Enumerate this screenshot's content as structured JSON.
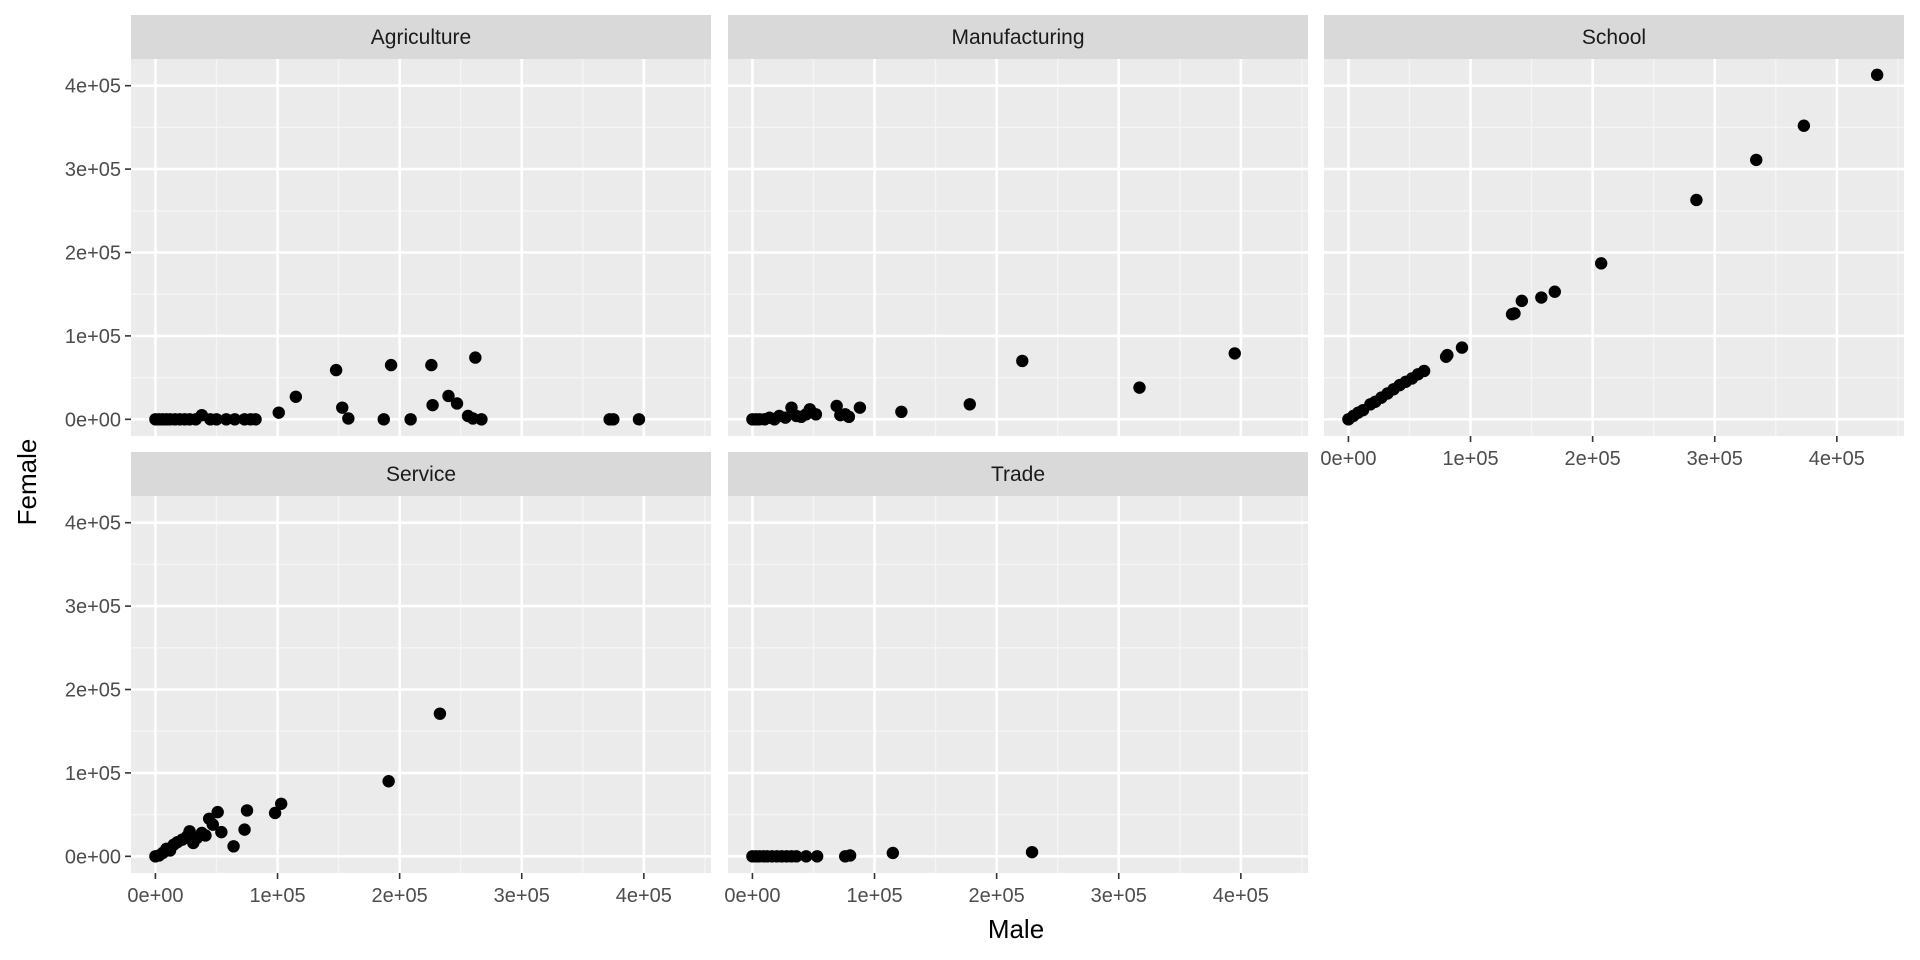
{
  "chart_data": {
    "type": "scatter",
    "xlabel": "Male",
    "ylabel": "Female",
    "xlim": [
      -20000,
      455000
    ],
    "ylim": [
      -20000,
      432000
    ],
    "x_ticks": [
      0,
      100000,
      200000,
      300000,
      400000
    ],
    "x_tick_labels": [
      "0e+00",
      "1e+05",
      "2e+05",
      "3e+05",
      "4e+05"
    ],
    "y_ticks": [
      0,
      100000,
      200000,
      300000,
      400000
    ],
    "y_tick_labels": [
      "0e+00",
      "1e+05",
      "2e+05",
      "3e+05",
      "4e+05"
    ],
    "grid": true,
    "colors": {
      "panel_background": "#ebebeb",
      "strip_background": "#d9d9d9",
      "grid_major": "#ffffff",
      "point": "#000000"
    },
    "panels": [
      {
        "name": "Agriculture",
        "points": [
          [
            0,
            0
          ],
          [
            3000,
            0
          ],
          [
            6000,
            0
          ],
          [
            9000,
            0
          ],
          [
            12000,
            0
          ],
          [
            16000,
            0
          ],
          [
            20000,
            0
          ],
          [
            24000,
            0
          ],
          [
            28000,
            0
          ],
          [
            33000,
            0
          ],
          [
            38000,
            5000
          ],
          [
            45000,
            0
          ],
          [
            50000,
            0
          ],
          [
            58000,
            0
          ],
          [
            65000,
            0
          ],
          [
            73000,
            0
          ],
          [
            78000,
            0
          ],
          [
            82000,
            0
          ],
          [
            101000,
            8000
          ],
          [
            115000,
            27000
          ],
          [
            148000,
            59000
          ],
          [
            153000,
            14000
          ],
          [
            158000,
            1000
          ],
          [
            187000,
            0
          ],
          [
            193000,
            65000
          ],
          [
            209000,
            0
          ],
          [
            226000,
            65000
          ],
          [
            227000,
            17000
          ],
          [
            240000,
            28000
          ],
          [
            247000,
            19000
          ],
          [
            256000,
            4000
          ],
          [
            262000,
            74000
          ],
          [
            260000,
            1000
          ],
          [
            267000,
            0
          ],
          [
            372000,
            0
          ],
          [
            375000,
            0
          ],
          [
            396000,
            0
          ]
        ]
      },
      {
        "name": "Manufacturing",
        "points": [
          [
            0,
            0
          ],
          [
            3000,
            0
          ],
          [
            6000,
            0
          ],
          [
            10000,
            0
          ],
          [
            14000,
            2000
          ],
          [
            18000,
            0
          ],
          [
            22000,
            4000
          ],
          [
            27000,
            2000
          ],
          [
            32000,
            14000
          ],
          [
            36000,
            4000
          ],
          [
            40000,
            3000
          ],
          [
            44000,
            6000
          ],
          [
            47000,
            12000
          ],
          [
            52000,
            6000
          ],
          [
            69000,
            16000
          ],
          [
            72000,
            5000
          ],
          [
            76000,
            6000
          ],
          [
            79000,
            3000
          ],
          [
            88000,
            14000
          ],
          [
            122000,
            9000
          ],
          [
            178000,
            18000
          ],
          [
            221000,
            70000
          ],
          [
            317000,
            38000
          ],
          [
            395000,
            79000
          ]
        ]
      },
      {
        "name": "School",
        "points": [
          [
            0,
            0
          ],
          [
            4000,
            4000
          ],
          [
            8000,
            8000
          ],
          [
            12000,
            11000
          ],
          [
            18000,
            18000
          ],
          [
            22000,
            21000
          ],
          [
            27000,
            26000
          ],
          [
            32000,
            31000
          ],
          [
            37000,
            36000
          ],
          [
            42000,
            41000
          ],
          [
            47000,
            45000
          ],
          [
            52000,
            49000
          ],
          [
            57000,
            54000
          ],
          [
            62000,
            58000
          ],
          [
            80000,
            75000
          ],
          [
            81000,
            77000
          ],
          [
            93000,
            86000
          ],
          [
            134000,
            126000
          ],
          [
            136000,
            127000
          ],
          [
            142000,
            142000
          ],
          [
            158000,
            146000
          ],
          [
            169000,
            153000
          ],
          [
            207000,
            187000
          ],
          [
            285000,
            263000
          ],
          [
            334000,
            311000
          ],
          [
            373000,
            352000
          ],
          [
            433000,
            413000
          ]
        ]
      },
      {
        "name": "Service",
        "points": [
          [
            0,
            0
          ],
          [
            3000,
            1000
          ],
          [
            6000,
            4000
          ],
          [
            9000,
            9000
          ],
          [
            12000,
            7000
          ],
          [
            15000,
            14000
          ],
          [
            18000,
            17000
          ],
          [
            22000,
            20000
          ],
          [
            26000,
            24000
          ],
          [
            28000,
            30000
          ],
          [
            31000,
            16000
          ],
          [
            34000,
            22000
          ],
          [
            38000,
            28000
          ],
          [
            41000,
            25000
          ],
          [
            44000,
            45000
          ],
          [
            47000,
            38000
          ],
          [
            51000,
            53000
          ],
          [
            54000,
            29000
          ],
          [
            64000,
            12000
          ],
          [
            73000,
            32000
          ],
          [
            75000,
            55000
          ],
          [
            98000,
            52000
          ],
          [
            103000,
            63000
          ],
          [
            191000,
            90000
          ],
          [
            233000,
            171000
          ]
        ]
      },
      {
        "name": "Trade",
        "points": [
          [
            0,
            0
          ],
          [
            3000,
            0
          ],
          [
            6000,
            0
          ],
          [
            9000,
            0
          ],
          [
            12000,
            0
          ],
          [
            16000,
            0
          ],
          [
            20000,
            0
          ],
          [
            24000,
            0
          ],
          [
            28000,
            0
          ],
          [
            32000,
            0
          ],
          [
            36000,
            0
          ],
          [
            44000,
            0
          ],
          [
            53000,
            0
          ],
          [
            76000,
            0
          ],
          [
            80000,
            1000
          ],
          [
            115000,
            4000
          ],
          [
            229000,
            5000
          ]
        ]
      }
    ]
  }
}
